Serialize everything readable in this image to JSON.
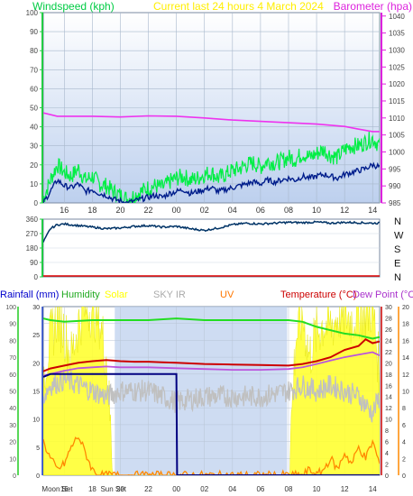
{
  "chart_data": [
    {
      "type": "line",
      "panel": "wind-baro",
      "title": "Current last 24 hours 4 March 2024",
      "y_left_label": "Windspeed (kph)",
      "y_right_label": "Barometer (hpa)",
      "x_ticks": [
        "16",
        "18",
        "20",
        "22",
        "00",
        "02",
        "04",
        "06",
        "08",
        "10",
        "12",
        "14"
      ],
      "x_tick_hours": [
        16,
        18,
        20,
        22,
        24,
        26,
        28,
        30,
        32,
        34,
        36,
        38
      ],
      "x_range_hours": [
        14.5,
        38.5
      ],
      "y_left_ticks": [
        "0",
        "10",
        "20",
        "30",
        "40",
        "50",
        "60",
        "70",
        "80",
        "90",
        "100"
      ],
      "y_left_range": [
        0,
        100
      ],
      "y_right_ticks": [
        "985",
        "990",
        "995",
        "1000",
        "1005",
        "1010",
        "1015",
        "1020",
        "1025",
        "1030",
        "1035",
        "1040"
      ],
      "y_right_range": [
        985,
        1041
      ],
      "grid": true,
      "colors": {
        "gust": "#00ee44",
        "wind": "#001e8c",
        "barometer": "#ee33ee",
        "plot_bg_top": "#ffffff",
        "plot_bg_bottom": "#bdd0ee"
      },
      "series": [
        {
          "name": "Windspeed",
          "unit": "kph",
          "x": [
            14.5,
            15,
            15.5,
            16,
            16.5,
            17,
            17.5,
            18,
            18.5,
            19,
            19.5,
            20,
            20.5,
            21,
            21.5,
            22,
            22.5,
            23,
            23.5,
            24,
            24.5,
            25,
            25.5,
            26,
            26.5,
            27,
            27.5,
            28,
            28.5,
            29,
            29.5,
            30,
            30.5,
            31,
            31.5,
            32,
            32.5,
            33,
            33.5,
            34,
            34.5,
            35,
            35.5,
            36,
            36.5,
            37,
            37.5,
            38,
            38.5
          ],
          "y": [
            0,
            6,
            12,
            9,
            8,
            10,
            6,
            7,
            5,
            4,
            2,
            1,
            0,
            1,
            2,
            3,
            4,
            3,
            5,
            6,
            7,
            5,
            6,
            7,
            8,
            6,
            7,
            8,
            9,
            10,
            11,
            10,
            12,
            11,
            12,
            13,
            12,
            14,
            13,
            14,
            15,
            14,
            13,
            15,
            16,
            17,
            18,
            20,
            19
          ]
        },
        {
          "name": "Gust",
          "unit": "kph",
          "x": [
            14.5,
            15,
            15.5,
            16,
            16.5,
            17,
            17.5,
            18,
            18.5,
            19,
            19.5,
            20,
            20.5,
            21,
            21.5,
            22,
            22.5,
            23,
            23.5,
            24,
            24.5,
            25,
            25.5,
            26,
            26.5,
            27,
            27.5,
            28,
            28.5,
            29,
            29.5,
            30,
            30.5,
            31,
            31.5,
            32,
            32.5,
            33,
            33.5,
            34,
            34.5,
            35,
            35.5,
            36,
            36.5,
            37,
            37.5,
            38,
            38.5
          ],
          "y": [
            2,
            12,
            20,
            16,
            14,
            18,
            12,
            14,
            10,
            9,
            6,
            4,
            2,
            4,
            6,
            8,
            9,
            8,
            11,
            13,
            14,
            12,
            13,
            15,
            16,
            13,
            15,
            17,
            18,
            20,
            21,
            19,
            22,
            21,
            22,
            24,
            23,
            26,
            24,
            26,
            28,
            25,
            24,
            28,
            30,
            30,
            32,
            34,
            30
          ]
        },
        {
          "name": "Barometer",
          "unit": "hpa",
          "x": [
            14.5,
            15.5,
            16.5,
            18,
            20,
            22,
            24,
            26,
            28,
            30,
            32,
            34,
            36,
            37,
            38,
            38.5
          ],
          "y": [
            1011.5,
            1010.5,
            1010.5,
            1010.5,
            1010.3,
            1010.6,
            1010.5,
            1010.0,
            1009.4,
            1009.0,
            1008.6,
            1008.2,
            1007.5,
            1006.7,
            1006.0,
            1006.0
          ]
        }
      ]
    },
    {
      "type": "line",
      "panel": "wind-direction",
      "y_ticks": [
        "0",
        "90",
        "180",
        "270",
        "360"
      ],
      "y_range": [
        0,
        360
      ],
      "compass_labels": [
        "N",
        "W",
        "S",
        "E",
        "N"
      ],
      "x_range_hours": [
        14.5,
        38.5
      ],
      "colors": {
        "direction": "#003366",
        "baseline": "#dd0000"
      },
      "series": [
        {
          "name": "Wind direction",
          "unit": "deg",
          "x": [
            14.5,
            15,
            15.5,
            16,
            17,
            18,
            19,
            20,
            21,
            22,
            23,
            24,
            25,
            26,
            27,
            28,
            29,
            30,
            31,
            32,
            33,
            34,
            35,
            36,
            37,
            38,
            38.5
          ],
          "y": [
            215,
            300,
            325,
            330,
            320,
            310,
            300,
            305,
            315,
            320,
            310,
            315,
            300,
            290,
            305,
            325,
            335,
            330,
            335,
            340,
            338,
            342,
            335,
            340,
            338,
            335,
            335
          ]
        }
      ]
    },
    {
      "type": "area",
      "panel": "solar-temp",
      "legend": [
        "Rainfall (mm)",
        "Humidity",
        "Solar",
        "SKY IR",
        "UV",
        "Temperature (°C)",
        "Dew Point (°C)"
      ],
      "x_labels": [
        "Moon Set",
        "16",
        "18",
        "Sun Set",
        "20",
        "22",
        "00",
        "02",
        "04",
        "06",
        "08",
        "10",
        "12",
        "14"
      ],
      "x_label_hours": [
        15.5,
        16,
        18,
        19.5,
        20,
        22,
        24,
        26,
        28,
        30,
        32,
        34,
        36,
        38
      ],
      "x_range_hours": [
        14.5,
        38.5
      ],
      "y_rain_ticks": [
        "0",
        "5",
        "10",
        "15",
        "20",
        "25",
        "30"
      ],
      "y_rain_range": [
        0,
        30
      ],
      "y_humidity_ticks": [
        "0",
        "10",
        "20",
        "30",
        "40",
        "50",
        "60",
        "70",
        "80",
        "90",
        "100"
      ],
      "y_humidity_range": [
        0,
        100
      ],
      "y_temp_ticks": [
        "0",
        "2",
        "4",
        "6",
        "8",
        "10",
        "12",
        "14",
        "16",
        "18",
        "20",
        "22",
        "24",
        "26",
        "28",
        "30"
      ],
      "y_temp_range": [
        0,
        30
      ],
      "y_dew_ticks": [
        "0",
        "2",
        "4",
        "6",
        "8",
        "10",
        "12",
        "14",
        "16",
        "18",
        "20"
      ],
      "y_dew_range": [
        0,
        20
      ],
      "colors": {
        "humidity": "#22dd22",
        "solar": "#ffff33",
        "skyir": "#c0c0c0",
        "uv": "#ff8800",
        "temperature": "#cc0000",
        "dewpoint": "#bb55dd",
        "rainfall": "#000080",
        "night_band": "#bdd0ee",
        "legend_rainfall": "#0000cc",
        "legend_humidity": "#22aa22",
        "legend_solar": "#ffff00",
        "legend_skyir": "#aaaaaa",
        "legend_uv": "#ff7700",
        "legend_temperature": "#cc0000",
        "legend_dewpoint": "#aa33cc"
      },
      "series": [
        {
          "name": "Humidity",
          "unit": "%",
          "x": [
            14.5,
            15,
            16,
            18,
            20,
            22,
            24,
            26,
            28,
            30,
            32,
            33,
            34,
            35,
            36,
            37,
            38,
            38.5
          ],
          "y": [
            93,
            92,
            91,
            92,
            92,
            92,
            93,
            92,
            92,
            92,
            92,
            91,
            88,
            86,
            84,
            83,
            81,
            82
          ]
        },
        {
          "name": "Solar",
          "unit": "W/m2",
          "x": [
            14.5,
            15,
            15.5,
            16,
            16.5,
            17,
            17.5,
            18,
            18.5,
            19,
            19.5,
            32,
            32.5,
            33,
            33.5,
            34,
            34.5,
            35,
            35.5,
            36,
            36.5,
            37,
            37.5,
            38,
            38.5
          ],
          "y": [
            60,
            80,
            95,
            85,
            70,
            90,
            100,
            98,
            92,
            70,
            0,
            0,
            80,
            95,
            70,
            85,
            90,
            88,
            94,
            96,
            92,
            98,
            95,
            100,
            60
          ]
        },
        {
          "name": "SKY IR",
          "unit": "°C",
          "x": [
            14.5,
            15,
            16,
            17,
            18,
            19,
            20,
            22,
            24,
            26,
            28,
            30,
            32,
            33,
            34,
            35,
            36,
            37,
            38,
            38.5
          ],
          "y": [
            14,
            16,
            17,
            16,
            15,
            14,
            15,
            15,
            13,
            14,
            14,
            14,
            15,
            16,
            15,
            16,
            15,
            14,
            11,
            14
          ]
        },
        {
          "name": "UV",
          "unit": "index",
          "x": [
            14.5,
            15,
            15.5,
            16,
            16.5,
            17,
            17.5,
            18,
            18.5,
            19,
            19.5,
            32,
            32.5,
            33,
            33.5,
            34,
            34.5,
            35,
            35.5,
            36,
            36.5,
            37,
            37.5,
            38,
            38.5
          ],
          "y": [
            6,
            3,
            1,
            2,
            5,
            7,
            4,
            1,
            0,
            0,
            0,
            0,
            0,
            0,
            1,
            0,
            1,
            3,
            1,
            4,
            2,
            5,
            3,
            6,
            2
          ]
        },
        {
          "name": "Temperature",
          "unit": "°C",
          "x": [
            14.5,
            15,
            16,
            17,
            18,
            19,
            20,
            21,
            22,
            23,
            24,
            26,
            28,
            30,
            32,
            33,
            34,
            35,
            36,
            37,
            37.5,
            38,
            38.5
          ],
          "y": [
            18.5,
            19,
            19.5,
            20,
            20.3,
            20.5,
            20.3,
            20.2,
            20.2,
            20.1,
            20,
            19.8,
            19.7,
            19.6,
            19.5,
            19.8,
            20.3,
            21,
            22.3,
            23,
            24.2,
            23.5,
            23.8
          ]
        },
        {
          "name": "Dew Point",
          "unit": "°C",
          "x": [
            14.5,
            15,
            16,
            17,
            18,
            19,
            20,
            22,
            24,
            26,
            28,
            30,
            32,
            33,
            34,
            35,
            36,
            37,
            38,
            38.5
          ],
          "y": [
            11.8,
            12,
            12.4,
            12.7,
            12.8,
            12.9,
            12.8,
            12.8,
            12.7,
            12.6,
            12.5,
            12.5,
            12.6,
            12.8,
            13.2,
            13.6,
            14,
            14.3,
            14.6,
            14.2
          ]
        },
        {
          "name": "Rainfall",
          "unit": "mm",
          "x": [
            14.5,
            15,
            19.5,
            24,
            24.05,
            38.5
          ],
          "y": [
            17.5,
            18,
            18,
            18,
            0,
            0
          ]
        }
      ]
    }
  ]
}
